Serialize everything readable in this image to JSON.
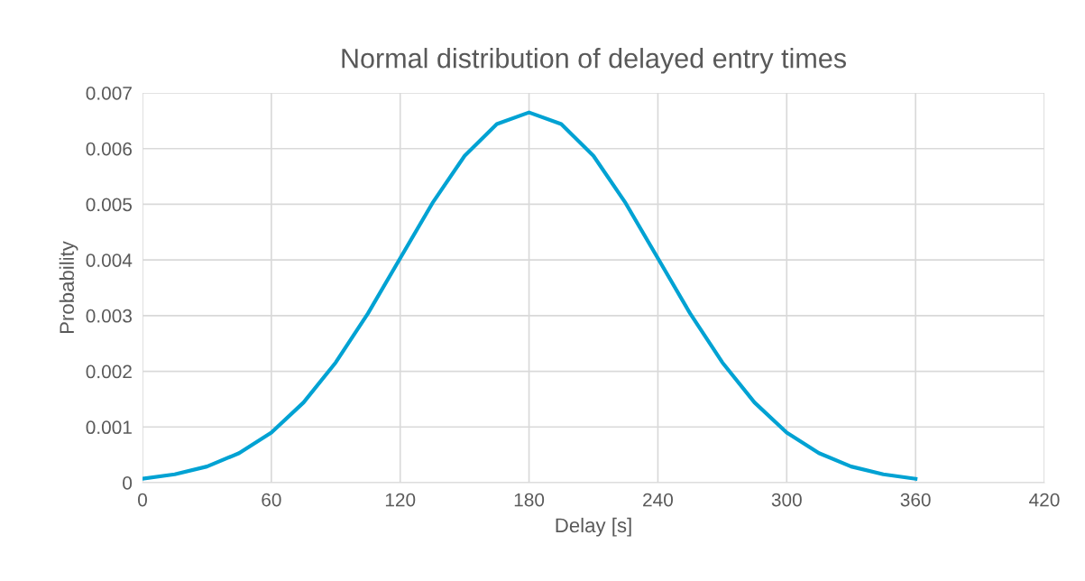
{
  "chart_data": {
    "type": "line",
    "title": "Normal distribution of delayed entry times",
    "xlabel": "Delay [s]",
    "ylabel": "Probability",
    "x": [
      0,
      15,
      30,
      45,
      60,
      75,
      90,
      105,
      120,
      135,
      150,
      165,
      180,
      195,
      210,
      225,
      240,
      255,
      270,
      285,
      300,
      315,
      330,
      345,
      360
    ],
    "series": [
      {
        "color": "#00a2d3",
        "values": [
          7e-05,
          0.00015,
          0.00029,
          0.00053,
          0.0009,
          0.00144,
          0.00216,
          0.00304,
          0.00403,
          0.00502,
          0.00587,
          0.00644,
          0.00665,
          0.00644,
          0.00587,
          0.00502,
          0.00403,
          0.00304,
          0.00216,
          0.00144,
          0.0009,
          0.00053,
          0.00029,
          0.00015,
          7e-05
        ]
      }
    ],
    "xlim": [
      0,
      420
    ],
    "xticks": [
      0,
      60,
      120,
      180,
      240,
      300,
      360,
      420
    ],
    "ylim": [
      0,
      0.007
    ],
    "yticks": [
      0,
      0.001,
      0.002,
      0.003,
      0.004,
      0.005,
      0.006,
      0.007
    ],
    "grid": true,
    "legend": false,
    "marker": "none",
    "line_style": "solid"
  }
}
